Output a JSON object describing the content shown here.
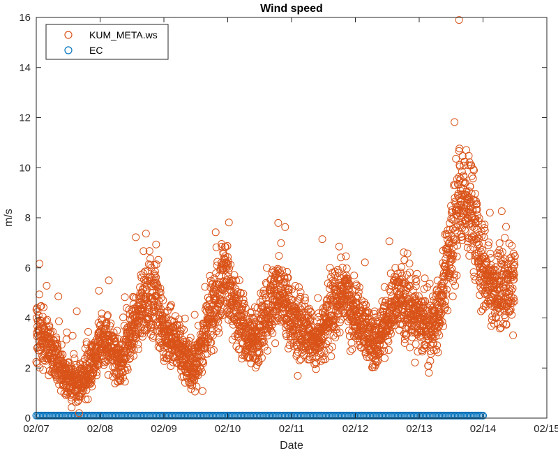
{
  "chart_data": {
    "type": "scatter",
    "title": "Wind speed",
    "xlabel": "Date",
    "ylabel": "m/s",
    "x_tick_labels": [
      "02/07",
      "02/08",
      "02/09",
      "02/10",
      "02/11",
      "02/12",
      "02/13",
      "02/14",
      "02/15"
    ],
    "x_tick_values": [
      "02/07",
      "02/08",
      "02/09",
      "02/10",
      "02/11",
      "02/12",
      "02/13",
      "02/14",
      "02/15"
    ],
    "xlim": [
      "02/07",
      "02/15"
    ],
    "ylim": [
      0,
      16
    ],
    "y_ticks": [
      0,
      2,
      4,
      6,
      8,
      10,
      12,
      14,
      16
    ],
    "grid": false,
    "legend_position": "top-left",
    "marker": "open-circle",
    "series": [
      {
        "name": "KUM_META.ws",
        "color": "#d95319",
        "x_range": [
          "02/07 00:00",
          "02/14 12:00"
        ],
        "approximate_profile": {
          "x": [
            "02/07 00:00",
            "02/07 04:00",
            "02/07 08:00",
            "02/07 12:00",
            "02/07 16:00",
            "02/07 20:00",
            "02/08 00:00",
            "02/08 04:00",
            "02/08 08:00",
            "02/08 12:00",
            "02/08 16:00",
            "02/08 20:00",
            "02/09 00:00",
            "02/09 04:00",
            "02/09 08:00",
            "02/09 12:00",
            "02/09 16:00",
            "02/09 20:00",
            "02/10 00:00",
            "02/10 04:00",
            "02/10 08:00",
            "02/10 12:00",
            "02/10 16:00",
            "02/10 20:00",
            "02/11 00:00",
            "02/11 04:00",
            "02/11 08:00",
            "02/11 12:00",
            "02/11 16:00",
            "02/11 20:00",
            "02/12 00:00",
            "02/12 04:00",
            "02/12 08:00",
            "02/12 12:00",
            "02/12 16:00",
            "02/12 20:00",
            "02/13 00:00",
            "02/13 04:00",
            "02/13 08:00",
            "02/13 12:00",
            "02/13 16:00",
            "02/13 20:00",
            "02/14 00:00",
            "02/14 04:00",
            "02/14 08:00",
            "02/14 12:00"
          ],
          "y": [
            3.5,
            3.0,
            2.2,
            1.5,
            1.2,
            2.0,
            3.0,
            2.8,
            2.0,
            3.5,
            4.5,
            5.0,
            3.5,
            3.0,
            2.5,
            2.0,
            3.5,
            5.0,
            5.5,
            4.0,
            3.0,
            3.5,
            4.5,
            5.0,
            4.0,
            3.5,
            3.0,
            3.5,
            4.5,
            5.0,
            4.0,
            3.5,
            3.0,
            4.0,
            5.0,
            4.5,
            4.0,
            3.5,
            4.5,
            7.0,
            9.0,
            8.0,
            6.0,
            5.0,
            5.0,
            5.5
          ]
        },
        "notable_values": {
          "max": 15.9,
          "max_at": "02/13 15:00"
        }
      },
      {
        "name": "EC",
        "color": "#0072bd",
        "x_range": [
          "02/07 00:00",
          "02/14 00:00"
        ],
        "y": 0.1
      }
    ]
  }
}
